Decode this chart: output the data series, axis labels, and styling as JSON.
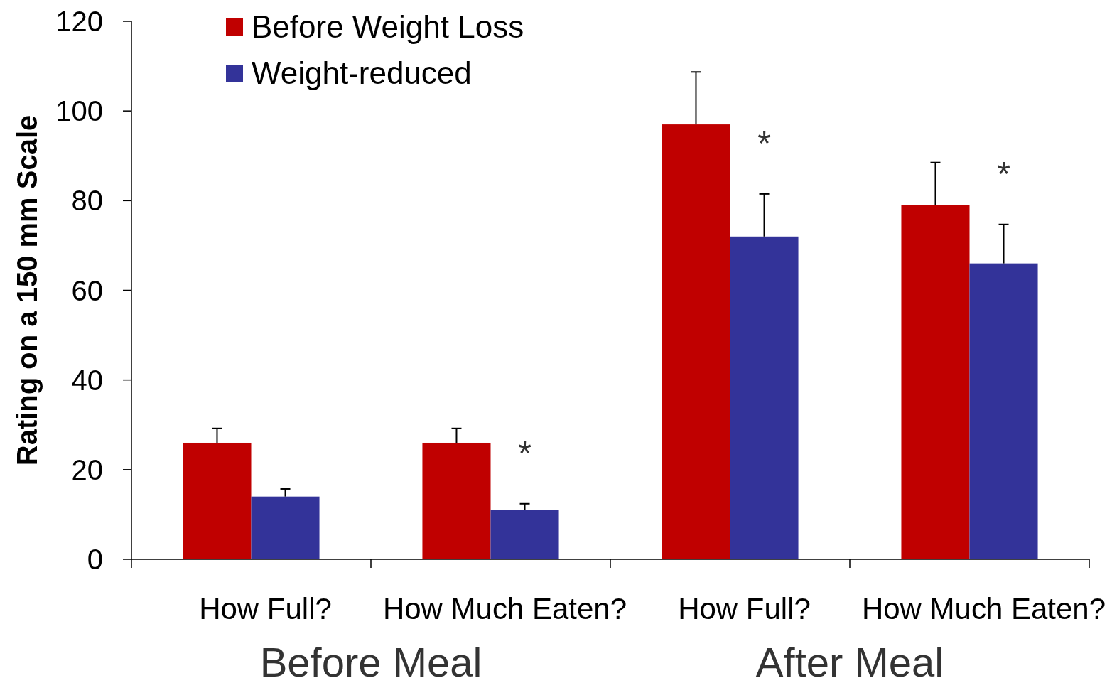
{
  "chart_data": {
    "type": "bar",
    "ylabel": "Rating on a 150 mm Scale",
    "categories": [
      "How Full?",
      "How Much Eaten?",
      "How Full?",
      "How Much Eaten?"
    ],
    "series": [
      {
        "name": "Before Weight Loss",
        "color": "#c00000",
        "values": [
          26,
          26,
          97,
          79
        ],
        "errors": [
          3.2,
          3.2,
          11.7,
          9.5
        ]
      },
      {
        "name": "Weight-reduced",
        "color": "#333399",
        "values": [
          14,
          11,
          72,
          66
        ],
        "errors": [
          1.7,
          1.4,
          9.5,
          8.7
        ]
      }
    ],
    "ylim": [
      0,
      120
    ],
    "yticks": [
      0,
      20,
      40,
      60,
      80,
      100,
      120
    ],
    "grid": false,
    "legend": "top left",
    "annotations": [
      "*",
      "*",
      "*",
      "Before Meal",
      "After Meal"
    ]
  }
}
